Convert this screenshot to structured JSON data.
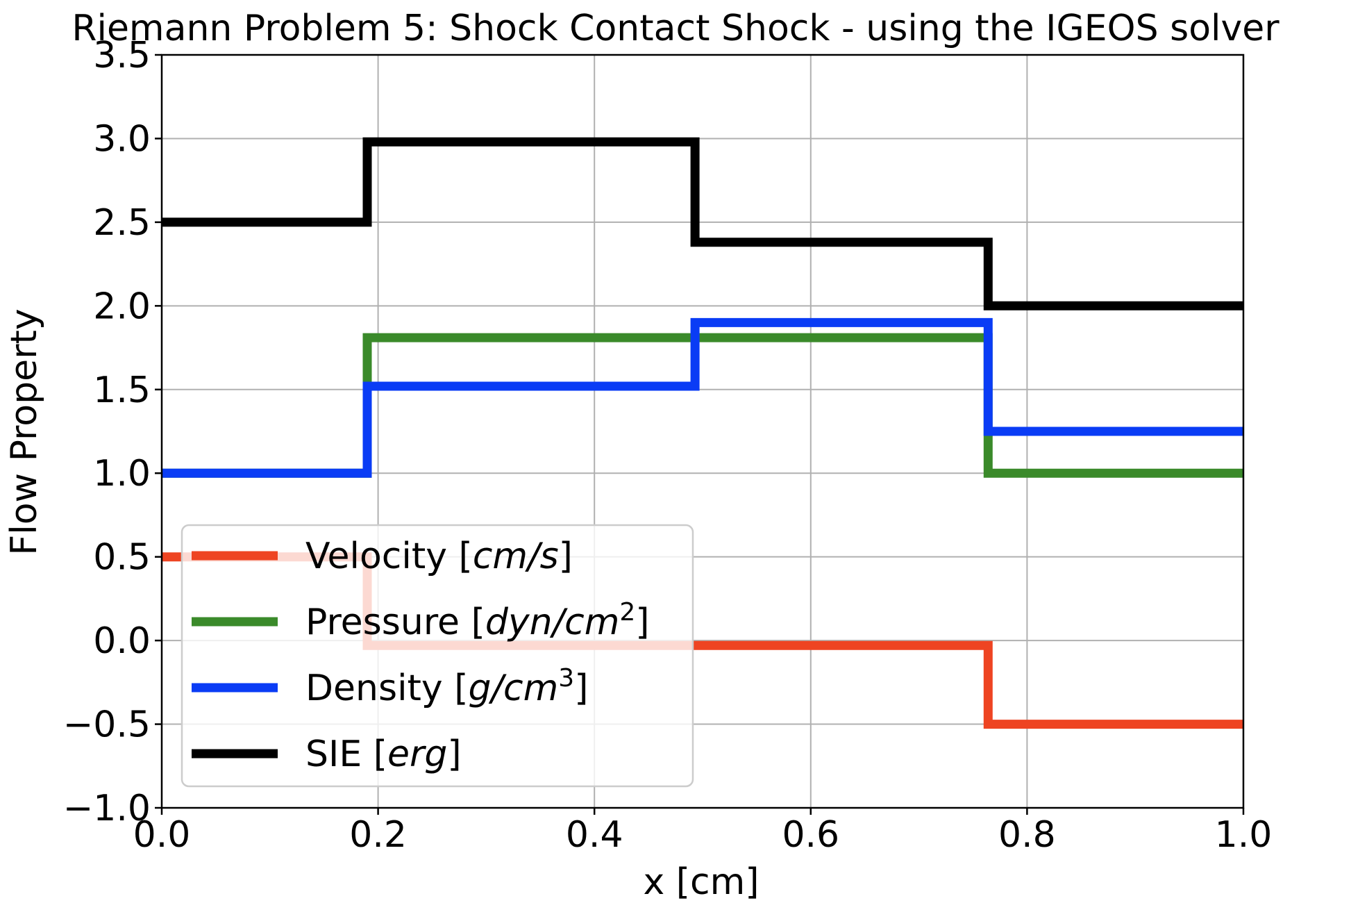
{
  "chart_data": {
    "type": "line",
    "title": "Riemann Problem 5: Shock Contact Shock - using the IGEOS solver",
    "xlabel": "x [cm]",
    "ylabel": "Flow Property",
    "xlim": [
      0.0,
      1.0
    ],
    "ylim": [
      -1.0,
      3.5
    ],
    "xticks": [
      0.0,
      0.2,
      0.4,
      0.6,
      0.8,
      1.0
    ],
    "xtick_labels": [
      "0.0",
      "0.2",
      "0.4",
      "0.6",
      "0.8",
      "1.0"
    ],
    "yticks": [
      -1.0,
      -0.5,
      0.0,
      0.5,
      1.0,
      1.5,
      2.0,
      2.5,
      3.0,
      3.5
    ],
    "ytick_labels": [
      "−1.0",
      "−0.5",
      "0.0",
      "0.5",
      "1.0",
      "1.5",
      "2.0",
      "2.5",
      "3.0",
      "3.5"
    ],
    "grid": true,
    "legend_position": "lower-left",
    "series": [
      {
        "name": "Velocity [cm/s]",
        "legend_base": "Velocity [",
        "legend_unit": "cm/s",
        "legend_sup": "",
        "color": "#ee4422",
        "x": [
          0.0,
          0.19,
          0.19,
          0.764,
          0.764,
          1.0
        ],
        "y": [
          0.5,
          0.5,
          -0.03,
          -0.03,
          -0.5,
          -0.5
        ]
      },
      {
        "name": "Pressure [dyn/cm2]",
        "legend_base": "Pressure [",
        "legend_unit": "dyn/cm",
        "legend_sup": "2",
        "color": "#3a8a2a",
        "x": [
          0.0,
          0.19,
          0.19,
          0.764,
          0.764,
          1.0
        ],
        "y": [
          1.0,
          1.0,
          1.81,
          1.81,
          1.0,
          1.0
        ]
      },
      {
        "name": "Density [g/cm3]",
        "legend_base": "Density [",
        "legend_unit": "g/cm",
        "legend_sup": "3",
        "color": "#0a3cf5",
        "x": [
          0.0,
          0.19,
          0.19,
          0.493,
          0.493,
          0.764,
          0.764,
          1.0
        ],
        "y": [
          1.0,
          1.0,
          1.52,
          1.52,
          1.9,
          1.9,
          1.25,
          1.25
        ]
      },
      {
        "name": "SIE [erg]",
        "legend_base": "SIE [",
        "legend_unit": "erg",
        "legend_sup": "",
        "color": "#000000",
        "x": [
          0.0,
          0.19,
          0.19,
          0.493,
          0.493,
          0.764,
          0.764,
          1.0
        ],
        "y": [
          2.5,
          2.5,
          2.98,
          2.98,
          2.38,
          2.38,
          2.0,
          2.0
        ]
      }
    ]
  }
}
